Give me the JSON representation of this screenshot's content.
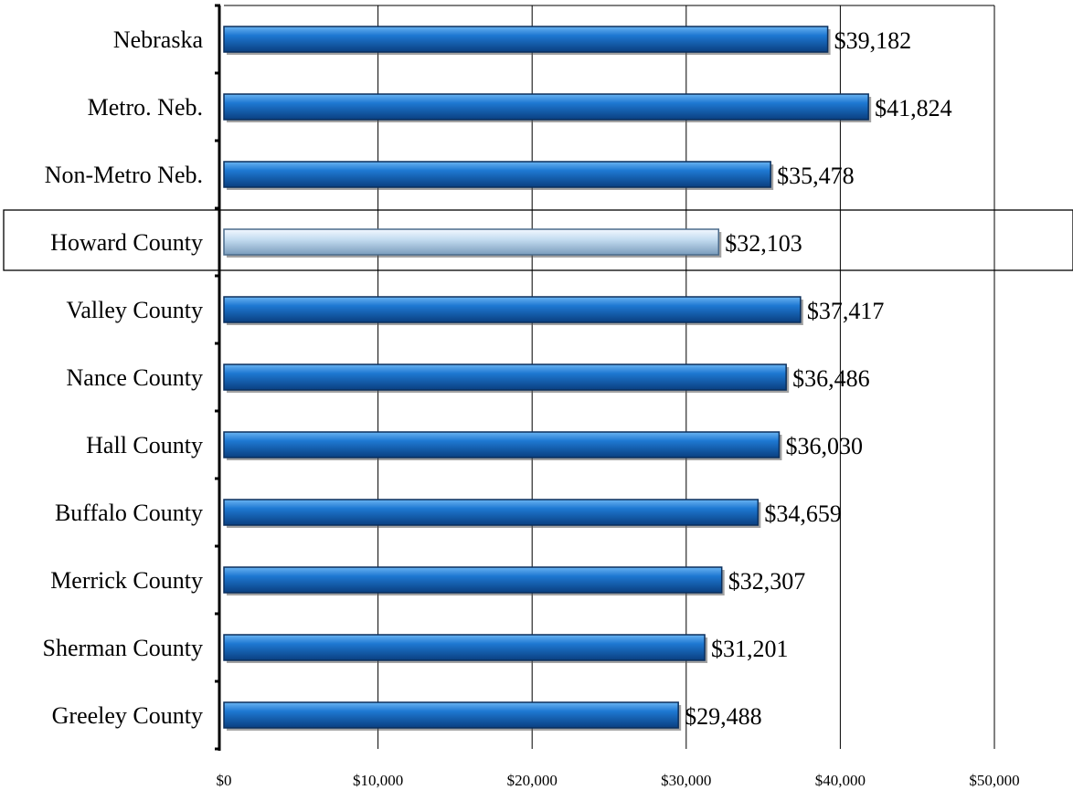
{
  "chart_data": {
    "type": "bar",
    "orientation": "horizontal",
    "categories": [
      "Nebraska",
      "Metro. Neb.",
      "Non-Metro Neb.",
      "Howard County",
      "Valley County",
      "Nance County",
      "Hall County",
      "Buffalo County",
      "Merrick County",
      "Sherman County",
      "Greeley County"
    ],
    "values": [
      39182,
      41824,
      35478,
      32103,
      37417,
      36486,
      36030,
      34659,
      32307,
      31201,
      29488
    ],
    "value_labels": [
      "$39,182",
      "$41,824",
      "$35,478",
      "$32,103",
      "$37,417",
      "$36,486",
      "$36,030",
      "$34,659",
      "$32,307",
      "$31,201",
      "$29,488"
    ],
    "highlight": "Howard County",
    "xlim": [
      0,
      50000
    ],
    "xticks": [
      0,
      10000,
      20000,
      30000,
      40000,
      50000
    ],
    "xtick_labels": [
      "$0",
      "$10,000",
      "$20,000",
      "$30,000",
      "$40,000",
      "$50,000"
    ],
    "grid": true,
    "colors": {
      "bar": "#1e78d2",
      "bar_dark": "#0a3f80",
      "bar_light": "#6ab4f2",
      "highlight": "#c4dcf0",
      "highlight_dark": "#7a9cbc"
    }
  }
}
